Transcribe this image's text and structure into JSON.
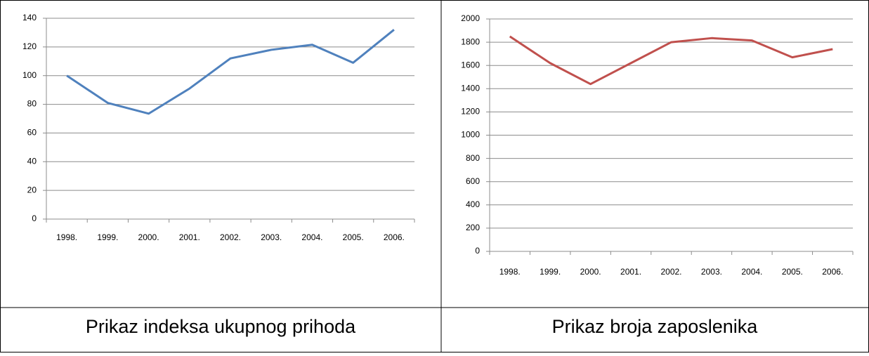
{
  "chart_data": [
    {
      "type": "line",
      "caption": "Prikaz indeksa ukupnog prihoda",
      "categories": [
        "1998.",
        "1999.",
        "2000.",
        "2001.",
        "2002.",
        "2003.",
        "2004.",
        "2005.",
        "2006."
      ],
      "values": [
        100,
        81,
        73.5,
        91,
        112,
        118,
        121.5,
        109,
        132
      ],
      "color": "#4f81bd",
      "ylim": [
        0,
        140
      ],
      "yticks": [
        0,
        20,
        40,
        60,
        80,
        100,
        120,
        140
      ],
      "grid": true
    },
    {
      "type": "line",
      "caption": "Prikaz broja zaposlenika",
      "categories": [
        "1998.",
        "1999.",
        "2000.",
        "2001.",
        "2002.",
        "2003.",
        "2004.",
        "2005.",
        "2006."
      ],
      "values": [
        1850,
        1620,
        1440,
        1620,
        1800,
        1835,
        1815,
        1670,
        1740
      ],
      "color": "#c0504d",
      "ylim": [
        0,
        2000
      ],
      "yticks": [
        0,
        200,
        400,
        600,
        800,
        1000,
        1200,
        1400,
        1600,
        1800,
        2000
      ],
      "grid": true
    }
  ]
}
